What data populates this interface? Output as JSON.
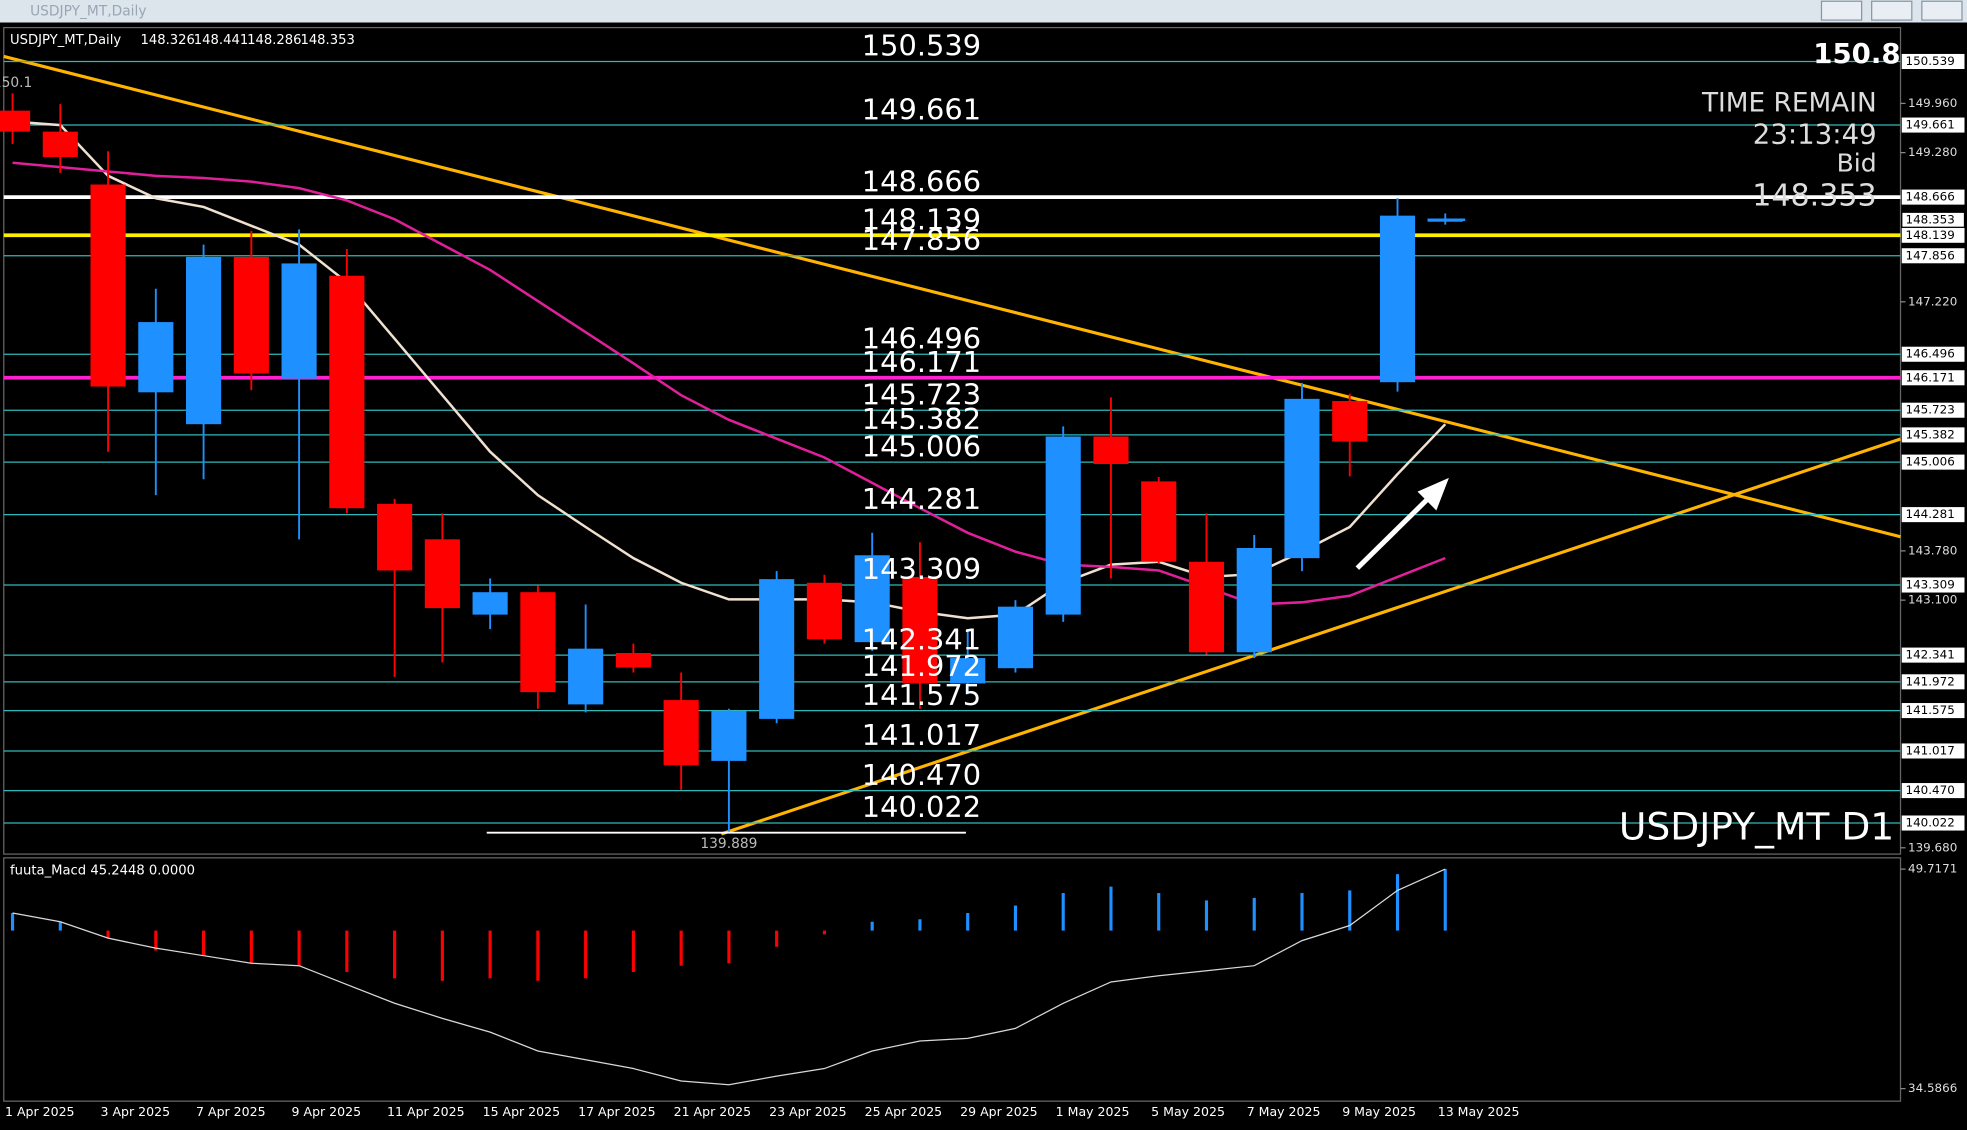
{
  "window": {
    "title": "USDJPY_MT,Daily"
  },
  "chart_data": [
    {
      "type": "candlestick",
      "title": "USDJPY_MT,Daily",
      "categories": [
        "1 Apr 2025",
        null,
        "3 Apr 2025",
        null,
        "7 Apr 2025",
        null,
        "9 Apr 2025",
        null,
        "11 Apr 2025",
        null,
        "15 Apr 2025",
        null,
        "17 Apr 2025",
        null,
        "21 Apr 2025",
        null,
        "23 Apr 2025",
        null,
        "25 Apr 2025",
        null,
        "29 Apr 2025",
        null,
        "1 May 2025",
        null,
        "5 May 2025",
        null,
        "7 May 2025",
        null,
        "9 May 2025",
        null,
        "13 May 2025"
      ],
      "open": [
        149.86,
        149.57,
        148.84,
        145.97,
        145.53,
        147.84,
        146.16,
        147.58,
        144.43,
        143.94,
        142.9,
        143.21,
        141.66,
        142.37,
        141.72,
        140.88,
        141.46,
        143.34,
        142.52,
        143.42,
        141.95,
        142.16,
        142.9,
        145.36,
        144.74,
        143.63,
        142.38,
        143.68,
        145.85,
        146.11,
        148.326
      ],
      "high": [
        150.1,
        149.95,
        149.3,
        147.4,
        148.01,
        148.2,
        148.22,
        147.95,
        144.5,
        144.3,
        143.4,
        143.3,
        143.04,
        142.5,
        142.1,
        141.6,
        143.5,
        143.45,
        144.03,
        143.9,
        142.7,
        143.1,
        145.5,
        145.9,
        144.8,
        144.3,
        144.0,
        146.1,
        145.95,
        148.652,
        148.441
      ],
      "low": [
        149.4,
        149.0,
        145.15,
        144.55,
        144.77,
        146.0,
        143.94,
        144.3,
        142.04,
        142.24,
        142.7,
        141.6,
        141.55,
        142.1,
        140.48,
        139.889,
        141.4,
        142.5,
        142.4,
        141.6,
        141.8,
        142.1,
        142.8,
        143.4,
        143.6,
        142.35,
        142.3,
        143.5,
        144.81,
        145.98,
        148.286
      ],
      "close": [
        149.57,
        149.22,
        146.05,
        146.94,
        147.84,
        146.23,
        147.75,
        144.37,
        143.51,
        142.99,
        143.21,
        141.83,
        142.43,
        142.17,
        140.82,
        141.57,
        143.39,
        142.56,
        143.72,
        141.95,
        142.3,
        143.01,
        145.36,
        144.98,
        143.63,
        142.38,
        143.82,
        145.88,
        145.29,
        148.41,
        148.353
      ],
      "up_color": "#1e90ff",
      "down_color": "#ff0000",
      "overlays": [
        {
          "color": "#f0e0d0",
          "values": [
            149.71,
            149.66,
            148.96,
            148.65,
            148.53,
            148.27,
            148.01,
            147.49,
            146.71,
            145.93,
            145.15,
            144.55,
            144.11,
            143.68,
            143.34,
            143.11,
            143.11,
            143.11,
            143.07,
            142.94,
            142.85,
            142.9,
            143.34,
            143.59,
            143.63,
            143.42,
            143.46,
            143.77,
            144.11,
            144.84,
            145.53
          ]
        },
        {
          "color": "#e0209a",
          "values": [
            149.14,
            149.08,
            149.02,
            148.96,
            148.93,
            148.88,
            148.79,
            148.62,
            148.36,
            148.01,
            147.66,
            147.23,
            146.8,
            146.37,
            145.93,
            145.59,
            145.33,
            145.07,
            144.72,
            144.37,
            144.03,
            143.77,
            143.59,
            143.56,
            143.51,
            143.28,
            143.04,
            143.07,
            143.16,
            143.42,
            143.68
          ]
        }
      ],
      "levels": [
        {
          "value": 150.539,
          "color": "#30b8b8"
        },
        {
          "value": 149.661,
          "color": "#30b8b8"
        },
        {
          "value": 148.666,
          "color": "#ffffff"
        },
        {
          "value": 148.139,
          "color": "#ffee00"
        },
        {
          "value": 147.856,
          "color": "#30b8b8"
        },
        {
          "value": 146.496,
          "color": "#30b8b8"
        },
        {
          "value": 146.171,
          "color": "#ff20d0"
        },
        {
          "value": 145.723,
          "color": "#30b8b8"
        },
        {
          "value": 145.382,
          "color": "#30b8b8"
        },
        {
          "value": 145.006,
          "color": "#30b8b8"
        },
        {
          "value": 144.281,
          "color": "#30b8b8"
        },
        {
          "value": 143.309,
          "color": "#30b8b8"
        },
        {
          "value": 142.341,
          "color": "#30b8b8"
        },
        {
          "value": 141.972,
          "color": "#30b8b8"
        },
        {
          "value": 141.575,
          "color": "#30b8b8"
        },
        {
          "value": 141.017,
          "color": "#30b8b8"
        },
        {
          "value": 140.47,
          "label": "140.470",
          "color": "#30b8b8"
        },
        {
          "value": 140.022,
          "color": "#30b8b8"
        }
      ],
      "ylim": [
        139.593,
        151.007
      ],
      "yticks": [
        {
          "value": 149.96,
          "label": "149.960"
        },
        {
          "value": 149.28,
          "label": "149.280"
        },
        {
          "value": 147.22,
          "label": "147.220"
        },
        {
          "value": 143.78,
          "label": "143.780"
        },
        {
          "value": 143.1,
          "label": "143.100"
        },
        {
          "value": 139.68,
          "label": "139.680"
        }
      ],
      "annotations": {
        "top_price": "150.8",
        "time_remain_label": "TIME REMAIN",
        "time_remain": "23:13:49",
        "bid_label": "Bid",
        "symbol_label": "USDJPY_MT D1"
      }
    },
    {
      "type": "macd",
      "title": "fuuta_Macd 45.2448 0.0000",
      "histogram": {
        "values": [
          46.69,
          46.09,
          44.96,
          44.1,
          43.75,
          43.23,
          43.06,
          42.63,
          42.19,
          42.02,
          42.19,
          42.02,
          42.19,
          42.63,
          43.06,
          43.23,
          44.36,
          45.22,
          46.09,
          46.26,
          46.69,
          47.21,
          48.07,
          48.51,
          48.07,
          47.56,
          47.73,
          48.07,
          48.25,
          49.37,
          49.72
        ],
        "colors": [
          "#1e90ff",
          "#1e90ff",
          "#ff0000",
          "#ff0000",
          "#ff0000",
          "#ff0000",
          "#ff0000",
          "#ff0000",
          "#ff0000",
          "#ff0000",
          "#ff0000",
          "#ff0000",
          "#ff0000",
          "#ff0000",
          "#ff0000",
          "#ff0000",
          "#ff0000",
          "#ff0000",
          "#1e90ff",
          "#1e90ff",
          "#1e90ff",
          "#1e90ff",
          "#1e90ff",
          "#1e90ff",
          "#1e90ff",
          "#1e90ff",
          "#1e90ff",
          "#1e90ff",
          "#1e90ff",
          "#1e90ff",
          "#1e90ff"
        ]
      },
      "signal": {
        "color": "#d8d8d8",
        "values": [
          46.69,
          46.09,
          44.96,
          44.27,
          43.75,
          43.23,
          43.06,
          41.76,
          40.47,
          39.43,
          38.48,
          37.18,
          36.58,
          35.97,
          35.11,
          34.85,
          35.45,
          35.97,
          37.18,
          37.87,
          38.05,
          38.74,
          40.47,
          41.94,
          42.37,
          42.71,
          43.06,
          44.79,
          45.83,
          48.25,
          49.72
        ]
      },
      "ylim": [
        34.5866,
        49.7171
      ],
      "yticks": [
        49.7171,
        34.5866
      ]
    }
  ]
}
